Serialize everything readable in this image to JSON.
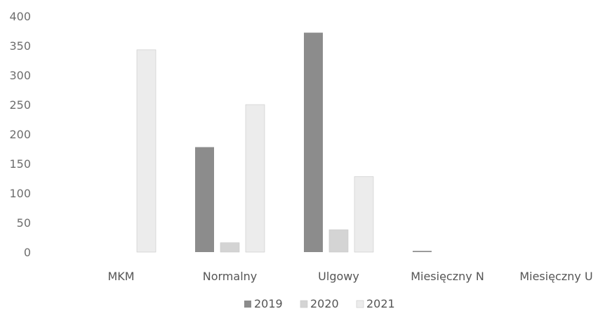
{
  "chart_data": {
    "type": "bar",
    "title": "",
    "xlabel": "",
    "ylabel": "",
    "ylim": [
      0,
      400
    ],
    "yticks": [
      0,
      50,
      100,
      150,
      200,
      250,
      300,
      350,
      400
    ],
    "grid": false,
    "legend_position": "bottom",
    "categories": [
      "MKM",
      "Normalny",
      "Ulgowy",
      "Miesięczny N",
      "Miesięczny U"
    ],
    "series": [
      {
        "name": "2019",
        "color": "#8c8c8c",
        "values": [
          0,
          178,
          372,
          2,
          0
        ]
      },
      {
        "name": "2020",
        "color": "#d4d4d4",
        "values": [
          0,
          16,
          38,
          0,
          0
        ]
      },
      {
        "name": "2021",
        "color": "#ececec",
        "values": [
          343,
          250,
          128,
          0,
          0
        ]
      }
    ]
  }
}
